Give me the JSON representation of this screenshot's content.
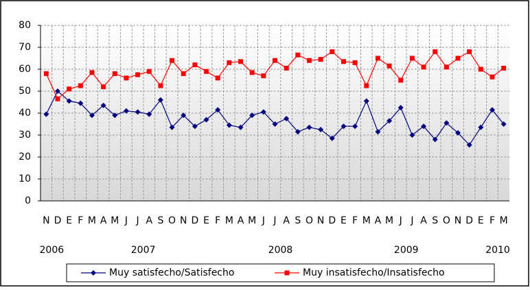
{
  "chart_data": {
    "type": "line",
    "categories": [
      "N",
      "D",
      "E",
      "F",
      "M",
      "A",
      "M",
      "J",
      "J",
      "A",
      "S",
      "O",
      "N",
      "D",
      "E",
      "F",
      "M",
      "A",
      "M",
      "J",
      "J",
      "A",
      "S",
      "O",
      "N",
      "D",
      "E",
      "F",
      "M",
      "A",
      "M",
      "J",
      "J",
      "A",
      "S",
      "O",
      "N",
      "D",
      "E",
      "F",
      "M"
    ],
    "year_labels": [
      "2006",
      null,
      null,
      null,
      null,
      null,
      null,
      null,
      "2007",
      null,
      null,
      null,
      null,
      null,
      null,
      null,
      null,
      null,
      null,
      null,
      "2008",
      null,
      null,
      null,
      null,
      null,
      null,
      null,
      null,
      null,
      null,
      "2009",
      null,
      null,
      null,
      null,
      null,
      null,
      null,
      "2010",
      null
    ],
    "series": [
      {
        "name": "Muy satisfecho/Satisfecho",
        "color": "#000080",
        "marker": "diamond",
        "values": [
          39.5,
          50,
          45.5,
          44.5,
          39,
          43.5,
          39,
          41,
          40.5,
          39.5,
          46,
          33.5,
          39,
          34,
          37,
          41.5,
          34.5,
          33.5,
          39,
          40.5,
          35,
          37.5,
          31.5,
          33.5,
          32.5,
          28.5,
          34,
          34,
          45.5,
          31.5,
          36.5,
          42.5,
          30,
          34,
          28,
          35.5,
          31,
          25.5,
          33.5,
          41.5,
          35
        ]
      },
      {
        "name": "Muy insatisfecho/Insatisfecho",
        "color": "#ff0000",
        "marker": "square",
        "values": [
          58,
          46.5,
          51,
          52.5,
          58.5,
          52,
          58,
          56,
          57.5,
          59,
          52.5,
          64,
          58,
          62,
          59,
          56,
          63,
          63.5,
          58.5,
          57,
          64,
          60.5,
          66.5,
          64,
          64.5,
          68,
          63.5,
          63,
          52.5,
          65,
          61.5,
          55,
          65,
          61,
          68,
          61,
          65,
          68,
          60,
          56.5,
          60.5
        ]
      }
    ],
    "ylim": [
      0,
      80
    ],
    "yticks": [
      0,
      10,
      20,
      30,
      40,
      50,
      60,
      70,
      80
    ],
    "grid": true,
    "legend": "bottom"
  }
}
